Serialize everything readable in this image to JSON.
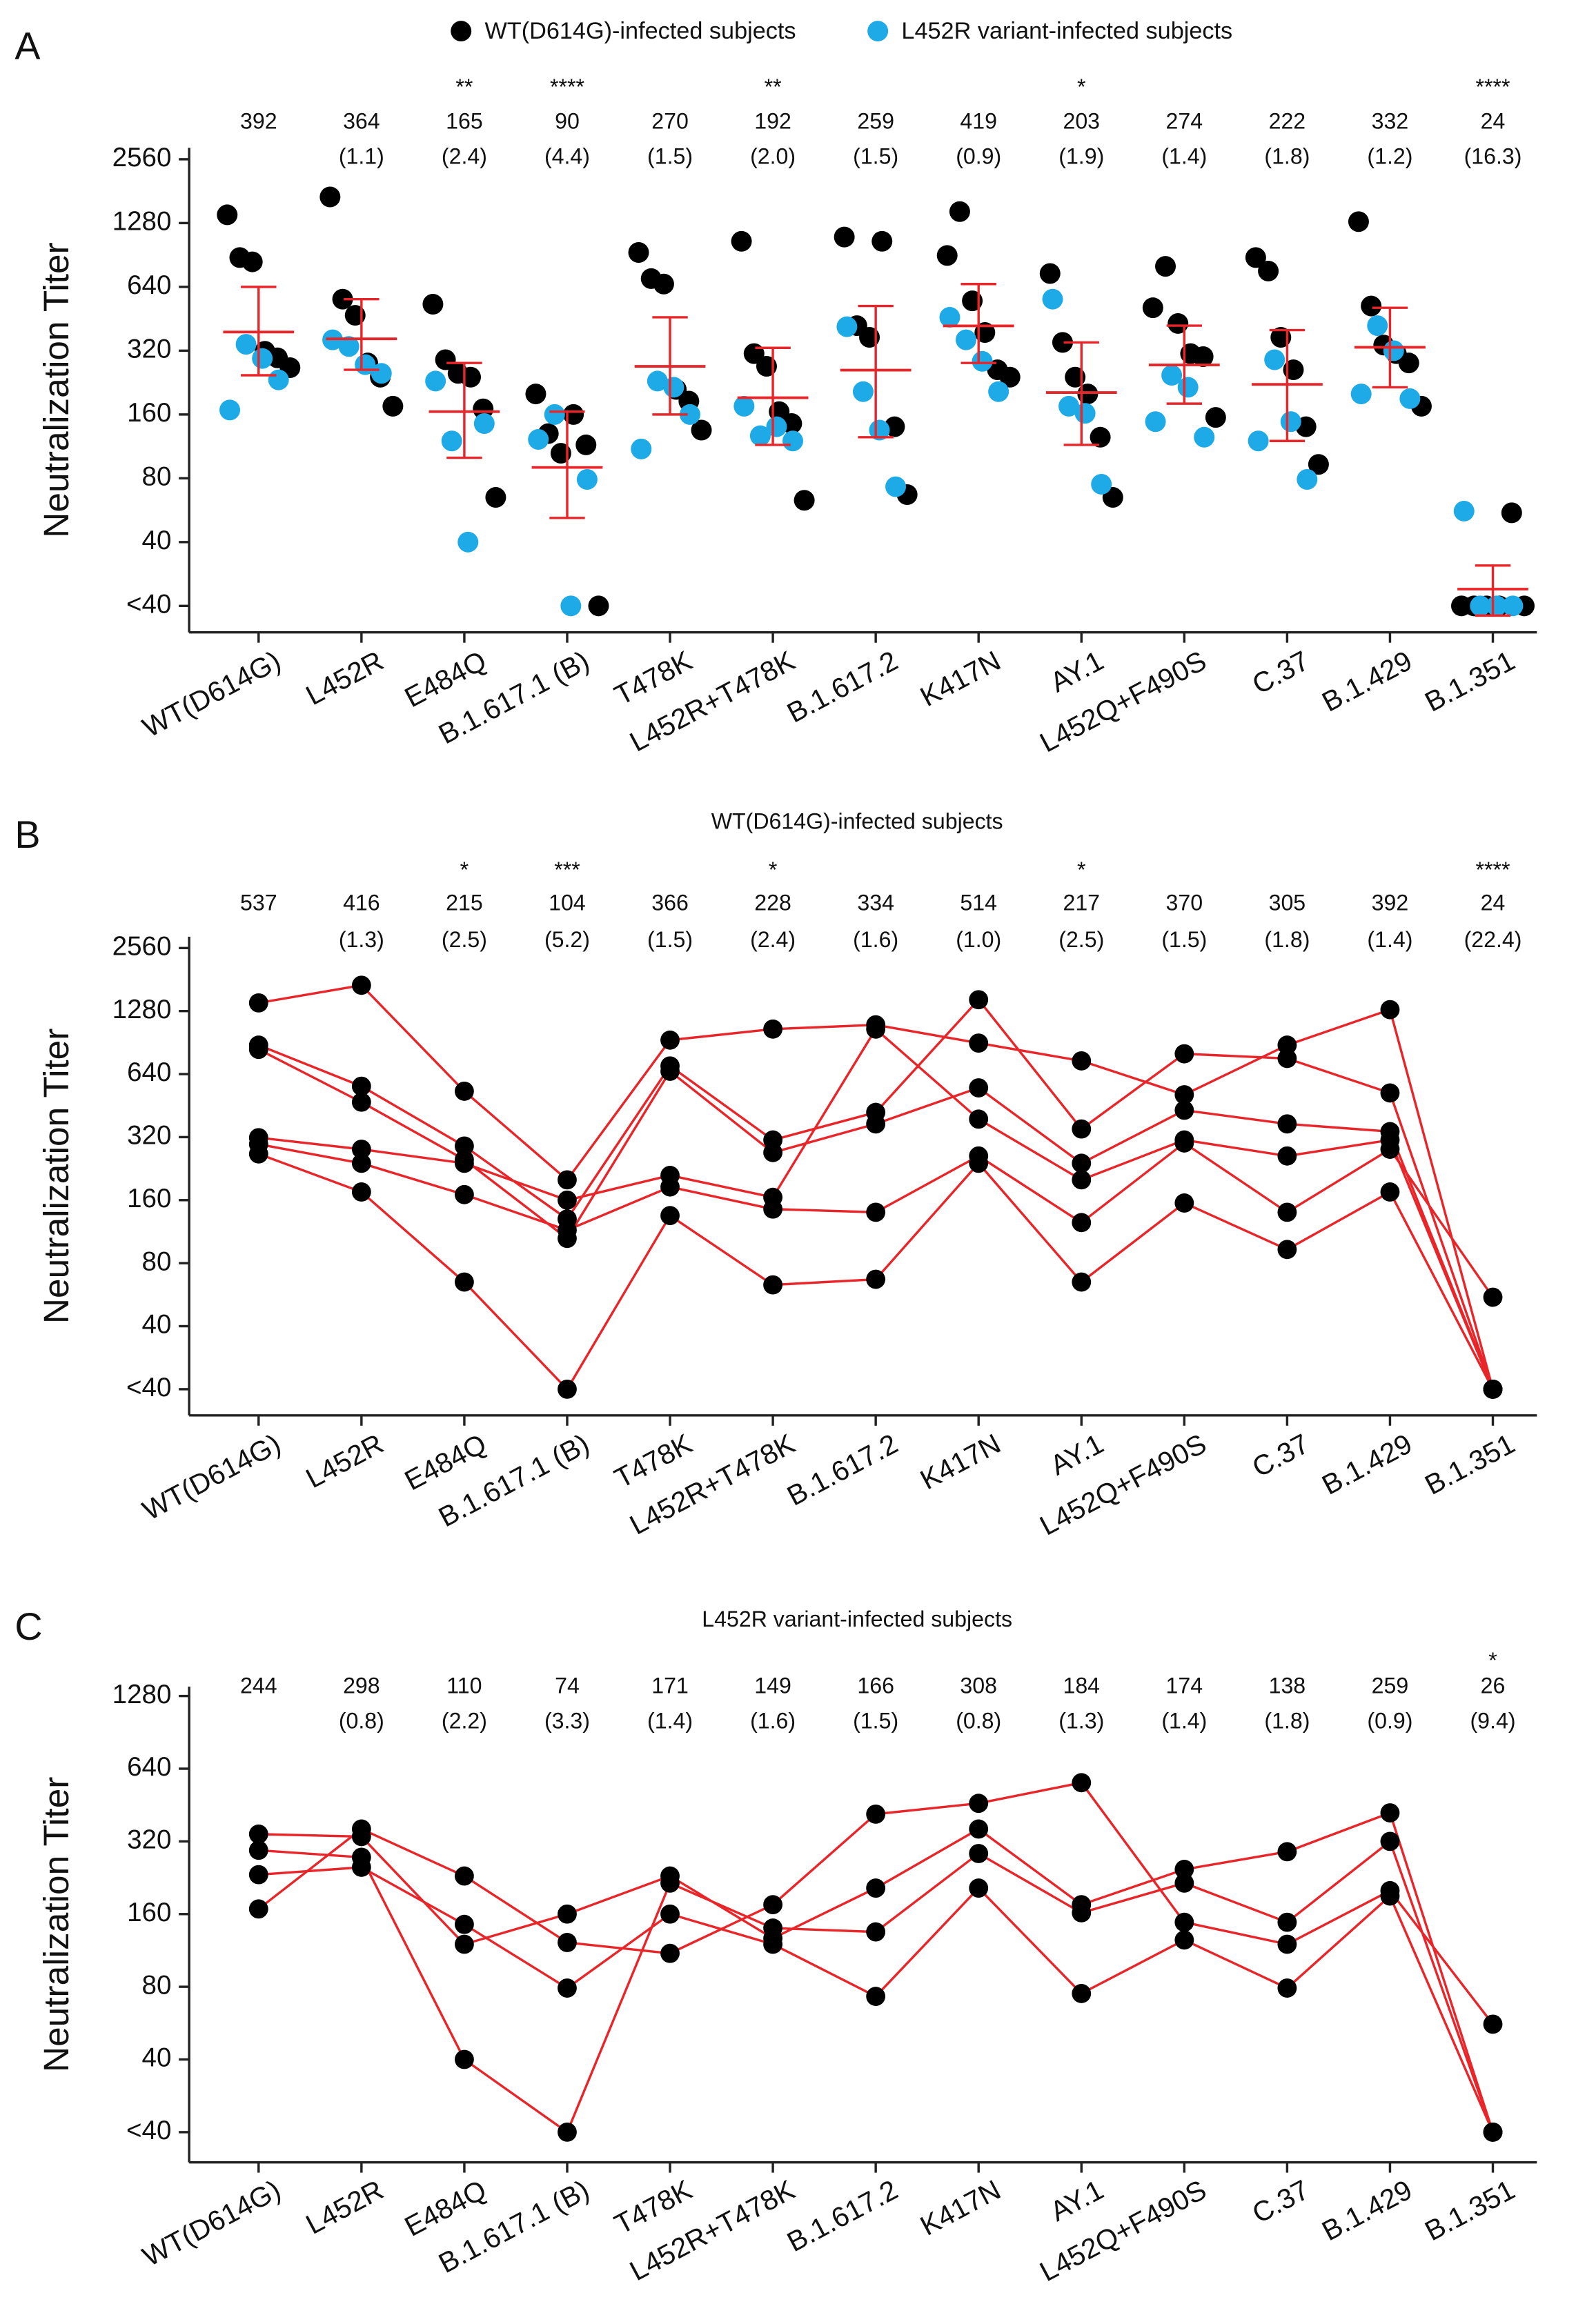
{
  "chart_data": [
    {
      "type": "dot",
      "panel": "A",
      "ylabel": "Neutralization Titer",
      "categories": [
        "WT(D614G)",
        "L452R",
        "E484Q",
        "B.1.617.1 (B)",
        "T478K",
        "L452R+T478K",
        "B.1.617.2",
        "K417N",
        "AY.1",
        "L452Q+F490S",
        "C.37",
        "B.1.429",
        "B.1.351"
      ],
      "means": [
        392,
        364,
        165,
        90,
        270,
        192,
        259,
        419,
        203,
        274,
        222,
        332,
        24
      ],
      "fold": [
        null,
        "(1.1)",
        "(2.4)",
        "(4.4)",
        "(1.5)",
        "(2.0)",
        "(1.5)",
        "(0.9)",
        "(1.9)",
        "(1.4)",
        "(1.8)",
        "(1.2)",
        "(16.3)"
      ],
      "significance": [
        null,
        null,
        "**",
        "****",
        null,
        "**",
        null,
        null,
        "*",
        null,
        null,
        null,
        "****"
      ],
      "ci_low": [
        245,
        260,
        100,
        52,
        160,
        115,
        125,
        280,
        115,
        180,
        120,
        215,
        18
      ],
      "ci_high": [
        640,
        560,
        280,
        165,
        460,
        330,
        520,
        660,
        350,
        420,
        400,
        510,
        31
      ],
      "group_colors": [
        "#000000",
        "#1eaae7"
      ],
      "mean_color": "#e8262a",
      "log_scale": true,
      "ylim": [
        15,
        2900
      ],
      "yticks": [
        {
          "value": 20,
          "label": "<40"
        },
        40,
        80,
        160,
        320,
        640,
        1280,
        2560
      ]
    },
    {
      "type": "line",
      "panel": "B",
      "title": "WT(D614G)-infected subjects",
      "ylabel": "Neutralization Titer",
      "categories": [
        "WT(D614G)",
        "L452R",
        "E484Q",
        "B.1.617.1 (B)",
        "T478K",
        "L452R+T478K",
        "B.1.617.2",
        "K417N",
        "AY.1",
        "L452Q+F490S",
        "C.37",
        "B.1.429",
        "B.1.351"
      ],
      "means": [
        537,
        416,
        215,
        104,
        366,
        228,
        334,
        514,
        217,
        370,
        305,
        392,
        24
      ],
      "fold": [
        null,
        "(1.3)",
        "(2.5)",
        "(5.2)",
        "(1.5)",
        "(2.4)",
        "(1.6)",
        "(1.0)",
        "(2.5)",
        "(1.5)",
        "(1.8)",
        "(1.4)",
        "(22.4)"
      ],
      "significance": [
        null,
        null,
        "*",
        "***",
        null,
        "*",
        null,
        null,
        "*",
        null,
        null,
        null,
        "****"
      ],
      "line_color": "#e8262a",
      "marker_color": "#000000",
      "series": [
        {
          "values": [
            1400,
            1700,
            530,
            200,
            930,
            1050,
            1100,
            900,
            740,
            510,
            880,
            1300,
            20
          ]
        },
        {
          "values": [
            880,
            560,
            290,
            130,
            700,
            310,
            420,
            1450,
            350,
            800,
            760,
            520,
            20
          ]
        },
        {
          "values": [
            840,
            470,
            250,
            105,
            660,
            270,
            370,
            550,
            240,
            430,
            370,
            340,
            20
          ]
        },
        {
          "values": [
            318,
            280,
            240,
            160,
            210,
            165,
            1050,
            390,
            200,
            310,
            260,
            310,
            20
          ]
        },
        {
          "values": [
            296,
            240,
            170,
            115,
            185,
            145,
            140,
            260,
            125,
            300,
            140,
            280,
            55
          ]
        },
        {
          "values": [
            266,
            175,
            65,
            20,
            135,
            63,
            67,
            240,
            65,
            155,
            93,
            175,
            20
          ]
        }
      ],
      "log_scale": true,
      "ylim": [
        15,
        2900
      ],
      "yticks": [
        {
          "value": 20,
          "label": "<40"
        },
        40,
        80,
        160,
        320,
        640,
        1280,
        2560
      ]
    },
    {
      "type": "line",
      "panel": "C",
      "title": "L452R variant-infected subjects",
      "ylabel": "Neutralization Titer",
      "categories": [
        "WT(D614G)",
        "L452R",
        "E484Q",
        "B.1.617.1 (B)",
        "T478K",
        "L452R+T478K",
        "B.1.617.2",
        "K417N",
        "AY.1",
        "L452Q+F490S",
        "C.37",
        "B.1.429",
        "B.1.351"
      ],
      "means": [
        244,
        298,
        110,
        74,
        171,
        149,
        166,
        308,
        184,
        174,
        138,
        259,
        26
      ],
      "fold": [
        null,
        "(0.8)",
        "(2.2)",
        "(3.3)",
        "(1.4)",
        "(1.6)",
        "(1.5)",
        "(0.8)",
        "(1.3)",
        "(1.4)",
        "(1.8)",
        "(0.9)",
        "(9.4)"
      ],
      "significance": [
        null,
        null,
        null,
        null,
        null,
        null,
        null,
        null,
        null,
        null,
        null,
        null,
        "*"
      ],
      "line_color": "#e8262a",
      "marker_color": "#000000",
      "series": [
        {
          "values": [
            168,
            360,
            230,
            122,
            110,
            175,
            415,
            460,
            560,
            148,
            120,
            200,
            56
          ]
        },
        {
          "values": [
            343,
            335,
            120,
            160,
            230,
            127,
            205,
            360,
            175,
            245,
            290,
            420,
            20
          ]
        },
        {
          "values": [
            294,
            275,
            40,
            20,
            215,
            140,
            135,
            285,
            162,
            215,
            148,
            320,
            20
          ]
        },
        {
          "values": [
            233,
            250,
            145,
            79,
            160,
            120,
            73,
            205,
            75,
            125,
            79,
            190,
            20
          ]
        }
      ],
      "log_scale": true,
      "ylim": [
        15,
        1400
      ],
      "yticks": [
        {
          "value": 20,
          "label": "<40"
        },
        40,
        80,
        160,
        320,
        640,
        1280
      ]
    }
  ]
}
